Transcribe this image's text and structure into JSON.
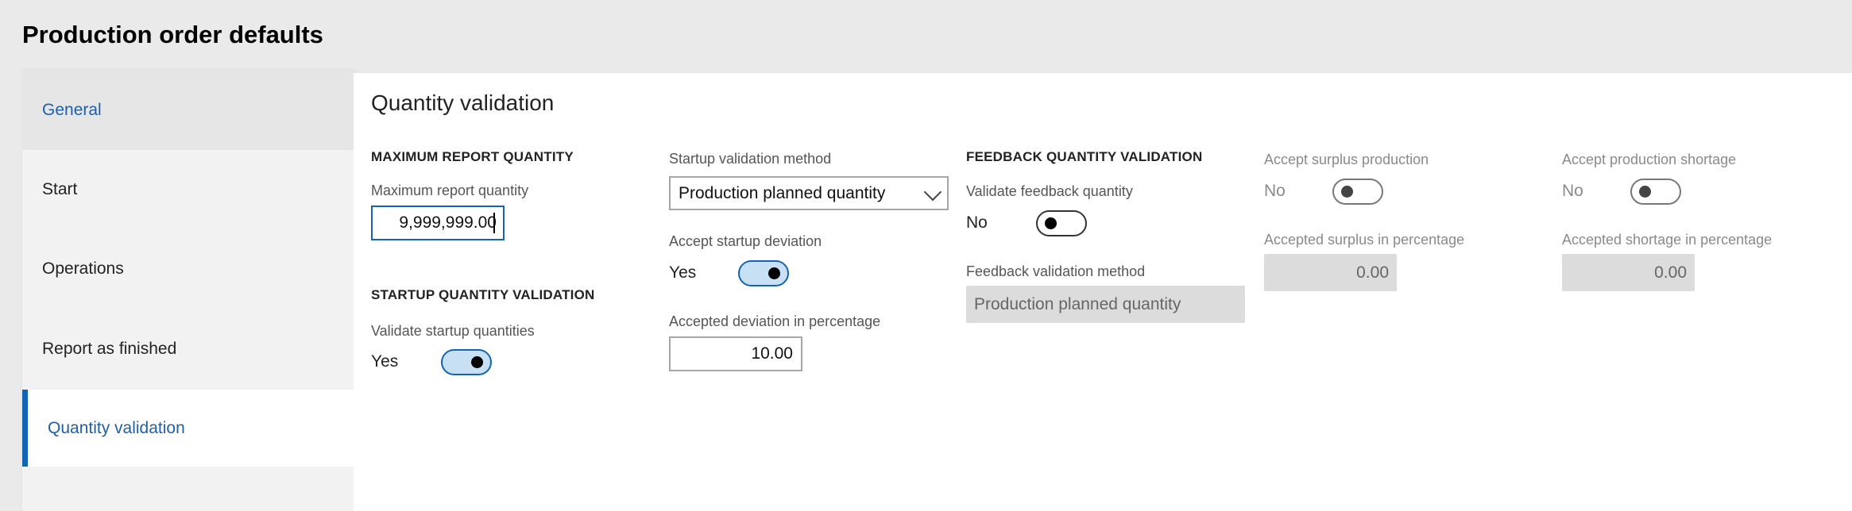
{
  "page": {
    "title": "Production order defaults"
  },
  "sidebar": {
    "items": [
      {
        "label": "General"
      },
      {
        "label": "Start"
      },
      {
        "label": "Operations"
      },
      {
        "label": "Report as finished"
      },
      {
        "label": "Quantity validation",
        "selected": true
      }
    ]
  },
  "content": {
    "title": "Quantity validation",
    "max_report": {
      "section": "MAXIMUM REPORT QUANTITY",
      "label": "Maximum report quantity",
      "value": "9,999,999.00"
    },
    "startup": {
      "section": "STARTUP QUANTITY VALIDATION",
      "validate_label": "Validate startup quantities",
      "validate_value": "Yes",
      "method_label": "Startup validation method",
      "method_value": "Production planned quantity",
      "accept_dev_label": "Accept startup deviation",
      "accept_dev_value": "Yes",
      "dev_pct_label": "Accepted deviation in percentage",
      "dev_pct_value": "10.00"
    },
    "feedback": {
      "section": "FEEDBACK QUANTITY VALIDATION",
      "validate_label": "Validate feedback quantity",
      "validate_value": "No",
      "method_label": "Feedback validation method",
      "method_value": "Production planned quantity",
      "surplus_label": "Accept surplus production",
      "surplus_value": "No",
      "surplus_pct_label": "Accepted surplus in percentage",
      "surplus_pct_value": "0.00",
      "shortage_label": "Accept production shortage",
      "shortage_value": "No",
      "shortage_pct_label": "Accepted shortage in percentage",
      "shortage_pct_value": "0.00"
    }
  },
  "colors": {
    "accent": "#1464b4",
    "toggle_on_fill": "#c7e0f4",
    "disabled_field": "#dcdcdc"
  }
}
